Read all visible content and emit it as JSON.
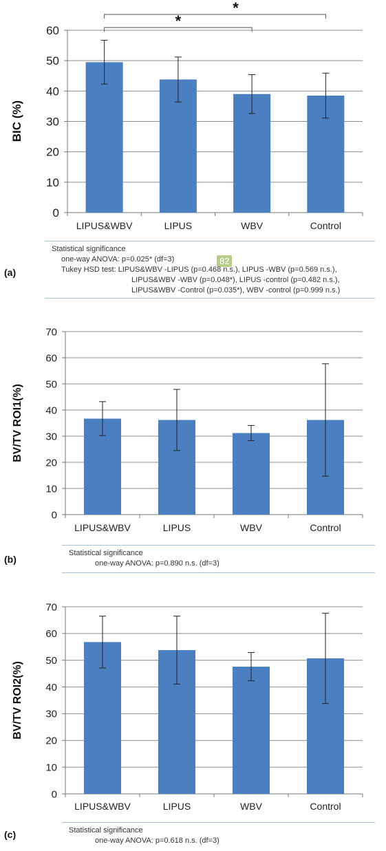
{
  "chart_data": [
    {
      "type": "bar",
      "panel": "(a)",
      "categories": [
        "LIPUS&WBV",
        "LIPUS",
        "WBV",
        "Control"
      ],
      "values": [
        49.5,
        43.8,
        39.0,
        38.5
      ],
      "errors": [
        7.2,
        7.4,
        6.4,
        7.4
      ],
      "ylabel": "BIC (%)",
      "ylim": [
        0,
        60
      ],
      "yticks": [
        0,
        10,
        20,
        30,
        40,
        50,
        60
      ],
      "bar_color": "#4a7fc1",
      "grid": true,
      "significance": [
        {
          "from": 0,
          "to": 2,
          "label": "*"
        },
        {
          "from": 0,
          "to": 3,
          "label": "*"
        }
      ],
      "notes": [
        "Statistical significance",
        "one-way ANOVA: p=0.025* (df=3)",
        "Tukey HSD test: LIPUS&WBV -LIPUS (p=0.468 n.s.), LIPUS -WBV (p=0.569 n.s.),",
        "LIPUS&WBV -WBV (p=0.048*), LIPUS -control (p=0.482 n.s.),",
        "LIPUS&WBV -Control (p=0.035*), WBV -control (p=0.999 n.s.)"
      ],
      "badge": "82"
    },
    {
      "type": "bar",
      "panel": "(b)",
      "categories": [
        "LIPUS&WBV",
        "LIPUS",
        "WBV",
        "Control"
      ],
      "values": [
        36.7,
        36.2,
        31.2,
        36.2
      ],
      "errors": [
        6.5,
        11.7,
        2.9,
        21.5
      ],
      "ylabel": "BV/TV ROI1(%)",
      "ylim": [
        0,
        70
      ],
      "yticks": [
        0,
        10,
        20,
        30,
        40,
        50,
        60,
        70
      ],
      "bar_color": "#4a7fc1",
      "grid": true,
      "notes": [
        "Statistical significance",
        "one-way ANOVA: p=0.890 n.s. (df=3)"
      ]
    },
    {
      "type": "bar",
      "panel": "(c)",
      "categories": [
        "LIPUS&WBV",
        "LIPUS",
        "WBV",
        "Control"
      ],
      "values": [
        56.8,
        53.8,
        47.6,
        50.7
      ],
      "errors": [
        9.7,
        12.7,
        5.3,
        16.9
      ],
      "ylabel": "BV/TV ROI2(%)",
      "ylim": [
        0,
        70
      ],
      "yticks": [
        0,
        10,
        20,
        30,
        40,
        50,
        60,
        70
      ],
      "bar_color": "#4a7fc1",
      "grid": true,
      "notes": [
        "Statistical significance",
        "one-way ANOVA: p=0.618 n.s. (df=3)"
      ]
    }
  ]
}
